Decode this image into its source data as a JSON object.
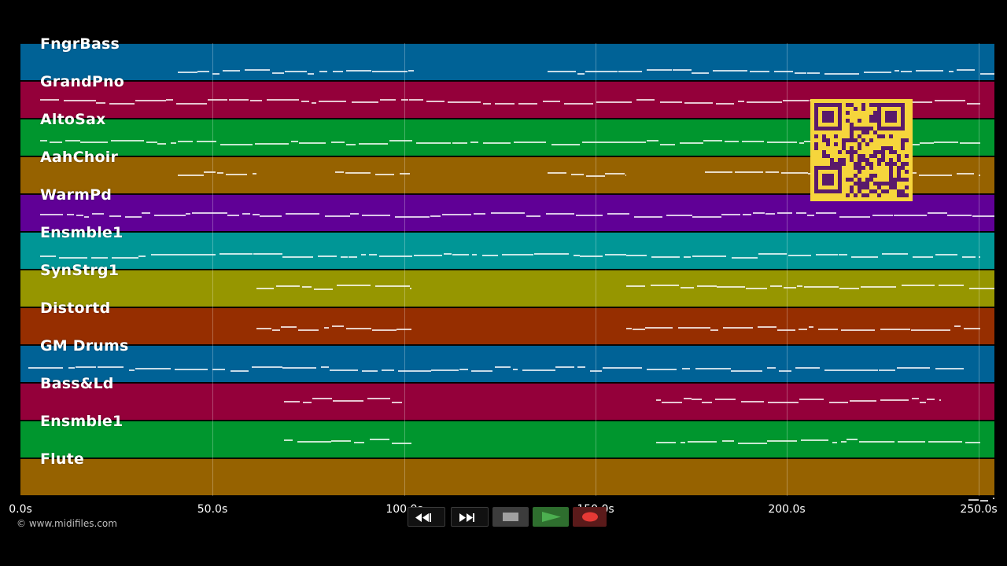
{
  "tracks": [
    {
      "name": "FngrBass",
      "color": "#006296"
    },
    {
      "name": "GrandPno",
      "color": "#94003a"
    },
    {
      "name": "AltoSax",
      "color": "#00962e"
    },
    {
      "name": "AahChoir",
      "color": "#966200"
    },
    {
      "name": "WarmPd",
      "color": "#600096"
    },
    {
      "name": "Ensmble1",
      "color": "#009696"
    },
    {
      "name": "SynStrg1",
      "color": "#969600"
    },
    {
      "name": "Distortd",
      "color": "#962e00"
    },
    {
      "name": "GM Drums",
      "color": "#006296"
    },
    {
      "name": "Bass&Ld",
      "color": "#94003a"
    },
    {
      "name": "Ensmble1",
      "color": "#00962e"
    },
    {
      "name": "Flute",
      "color": "#966200"
    }
  ],
  "timeline": {
    "ticks": [
      "0.0s",
      "50.0s",
      "100.0s",
      "150.0s",
      "200.0s",
      "250.0s"
    ]
  },
  "copyright": "© www.midifiles.com",
  "qr_color": "#f6d53c",
  "qr_dark_color": "#5a1a6b",
  "transport": {
    "buttons": [
      {
        "name": "rewind-button",
        "icon": "rewind-icon"
      },
      {
        "name": "fast-forward-button",
        "icon": "fast-forward-icon"
      },
      {
        "name": "stop-button",
        "icon": "stop-icon"
      },
      {
        "name": "play-button",
        "icon": "play-icon",
        "color": "#4caf50"
      },
      {
        "name": "record-button",
        "icon": "record-icon",
        "color": "#e53935"
      }
    ]
  }
}
